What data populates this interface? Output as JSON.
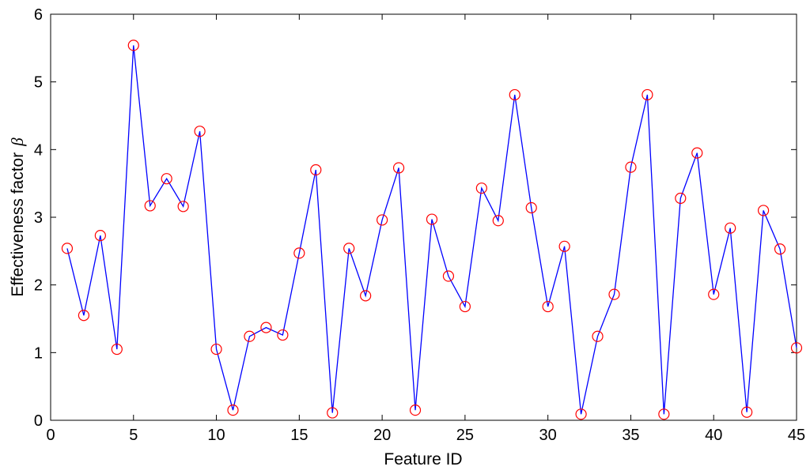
{
  "chart_data": {
    "type": "line",
    "title": "",
    "xlabel": "Feature ID",
    "ylabel": "Effectiveness factor",
    "ylabel_symbol": "β",
    "xlim": [
      0,
      45
    ],
    "ylim": [
      0,
      6
    ],
    "xticks": [
      0,
      5,
      10,
      15,
      20,
      25,
      30,
      35,
      40,
      45
    ],
    "yticks": [
      0,
      1,
      2,
      3,
      4,
      5,
      6
    ],
    "grid": false,
    "line_color": "#0000ff",
    "marker_color": "#ff0000",
    "marker": "circle",
    "x": [
      1,
      2,
      3,
      4,
      5,
      6,
      7,
      8,
      9,
      10,
      11,
      12,
      13,
      14,
      15,
      16,
      17,
      18,
      19,
      20,
      21,
      22,
      23,
      24,
      25,
      26,
      27,
      28,
      29,
      30,
      31,
      32,
      33,
      34,
      35,
      36,
      37,
      38,
      39,
      40,
      41,
      42,
      43,
      44,
      45
    ],
    "y": [
      2.54,
      1.55,
      2.73,
      1.05,
      5.54,
      3.17,
      3.57,
      3.16,
      4.27,
      1.05,
      0.15,
      1.24,
      1.37,
      1.26,
      2.47,
      3.7,
      0.11,
      2.54,
      1.84,
      2.96,
      3.73,
      0.15,
      2.97,
      2.13,
      1.68,
      3.43,
      2.95,
      4.81,
      3.14,
      1.68,
      2.57,
      0.09,
      1.24,
      1.86,
      3.74,
      4.81,
      0.09,
      3.28,
      3.95,
      1.86,
      2.84,
      0.12,
      3.1,
      2.53,
      1.07
    ]
  }
}
